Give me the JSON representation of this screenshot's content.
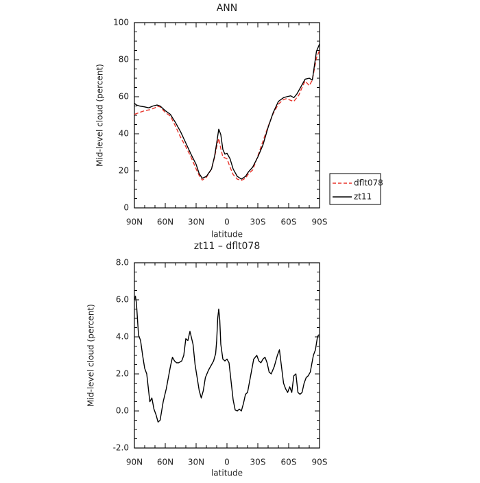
{
  "chart_data": [
    {
      "type": "line",
      "title": "ANN",
      "xlabel": "latitude",
      "ylabel": "Mid-level cloud (percent)",
      "xlim": [
        90,
        -90
      ],
      "ylim": [
        0,
        100
      ],
      "xticks": [
        90,
        60,
        30,
        0,
        -30,
        -60,
        -90
      ],
      "xticklabels": [
        "90N",
        "60N",
        "30N",
        "0",
        "30S",
        "60S",
        "90S"
      ],
      "yticks": [
        0,
        20,
        40,
        60,
        80,
        100
      ],
      "yticklabels": [
        "0",
        "20",
        "40",
        "60",
        "80",
        "100"
      ],
      "legend_position": "right",
      "series": [
        {
          "name": "dflt078",
          "color": "#e8332a",
          "dash": "dashed",
          "x": [
            90,
            85,
            80,
            75,
            70,
            68,
            65,
            60,
            55,
            50,
            45,
            40,
            35,
            30,
            27,
            24,
            20,
            15,
            12,
            10,
            8,
            6,
            4,
            0,
            -3,
            -6,
            -10,
            -14,
            -18,
            -21,
            -25,
            -30,
            -35,
            -40,
            -45,
            -50,
            -55,
            -58,
            -62,
            -65,
            -70,
            -73,
            -76,
            -80,
            -83,
            -87,
            -90
          ],
          "y": [
            50.5,
            51.5,
            52.5,
            53,
            54,
            55,
            54.5,
            51.5,
            49.5,
            44,
            38,
            33,
            27.5,
            21,
            17.5,
            15,
            16.5,
            21,
            27.5,
            33,
            37.5,
            32,
            27.5,
            26.5,
            22,
            18,
            15.5,
            14.8,
            16,
            18.5,
            20.5,
            28,
            36,
            44,
            51,
            56,
            58.5,
            59,
            58,
            57.5,
            61,
            65,
            68.5,
            66,
            69,
            81,
            85
          ]
        },
        {
          "name": "zt11",
          "color": "#000000",
          "dash": "solid",
          "x": [
            90,
            88,
            85,
            80,
            76,
            72,
            68,
            65,
            60,
            55,
            50,
            45,
            40,
            35,
            30,
            27,
            24,
            20,
            15,
            12,
            10,
            8,
            6,
            4,
            2,
            0,
            -3,
            -6,
            -10,
            -14,
            -18,
            -21,
            -25,
            -30,
            -35,
            -40,
            -45,
            -50,
            -55,
            -58,
            -62,
            -65,
            -68,
            -72,
            -76,
            -80,
            -83,
            -87,
            -90
          ],
          "y": [
            56.5,
            55.5,
            55,
            54.5,
            54,
            55,
            55.5,
            55,
            52.5,
            50.5,
            46,
            41,
            35,
            29,
            23.5,
            18.5,
            16,
            17,
            21,
            28,
            35,
            42.5,
            39.5,
            31.5,
            29,
            29.5,
            26.5,
            21,
            17,
            15.5,
            17,
            19.5,
            22,
            27.5,
            34,
            43.5,
            51.5,
            57.5,
            59.5,
            60,
            60.5,
            59.5,
            61.5,
            65.5,
            69.5,
            70,
            69,
            84.5,
            88.5
          ]
        }
      ]
    },
    {
      "type": "line",
      "title": "zt11 – dflt078",
      "xlabel": "latitude",
      "ylabel": "Mid-level cloud (percent)",
      "xlim": [
        90,
        -90
      ],
      "ylim": [
        -2,
        8
      ],
      "xticks": [
        90,
        60,
        30,
        0,
        -30,
        -60,
        -90
      ],
      "xticklabels": [
        "90N",
        "60N",
        "30N",
        "0",
        "30S",
        "60S",
        "90S"
      ],
      "yticks": [
        -2,
        0,
        2,
        4,
        6,
        8
      ],
      "yticklabels": [
        "-2.0",
        "0.0",
        "2.0",
        "4.0",
        "6.0",
        "8.0"
      ],
      "series": [
        {
          "color": "#000000",
          "dash": "solid",
          "x": [
            90,
            89,
            88,
            86,
            84,
            82,
            80,
            78,
            77,
            75,
            73,
            71,
            69,
            67,
            65,
            62,
            59,
            57,
            55,
            53,
            51,
            49,
            47,
            44,
            42,
            40,
            38,
            36,
            33,
            31,
            29,
            27,
            25,
            23,
            21,
            18,
            15,
            13,
            11,
            10,
            9,
            8,
            7,
            6,
            4,
            2,
            0,
            -2,
            -4,
            -6,
            -8,
            -10,
            -12,
            -14,
            -16,
            -18,
            -20,
            -23,
            -26,
            -29,
            -31,
            -33,
            -35,
            -37,
            -39,
            -41,
            -43,
            -46,
            -49,
            -51,
            -53,
            -55,
            -57,
            -59,
            -61,
            -63,
            -65,
            -67,
            -69,
            -71,
            -73,
            -75,
            -77,
            -79,
            -81,
            -84,
            -86,
            -88,
            -89,
            -90
          ],
          "y": [
            6.0,
            6.2,
            5.8,
            4.1,
            3.8,
            3.0,
            2.3,
            2.0,
            1.5,
            0.5,
            0.7,
            0.1,
            -0.2,
            -0.6,
            -0.5,
            0.5,
            1.2,
            1.8,
            2.4,
            2.9,
            2.7,
            2.6,
            2.6,
            2.7,
            3.0,
            3.9,
            3.8,
            4.3,
            3.6,
            2.5,
            1.8,
            1.1,
            0.7,
            1.1,
            1.8,
            2.2,
            2.5,
            2.7,
            3.1,
            3.8,
            5.0,
            5.5,
            4.9,
            3.6,
            2.8,
            2.7,
            2.8,
            2.6,
            1.6,
            0.6,
            0.05,
            0.0,
            0.1,
            0.0,
            0.4,
            0.9,
            1.0,
            1.9,
            2.8,
            3.0,
            2.7,
            2.6,
            2.8,
            2.9,
            2.6,
            2.1,
            2.0,
            2.4,
            3.0,
            3.3,
            2.4,
            1.5,
            1.2,
            1.0,
            1.3,
            1.0,
            1.9,
            2.0,
            1.0,
            0.9,
            1.0,
            1.5,
            1.8,
            1.9,
            2.1,
            3.0,
            3.3,
            4.0,
            4.1,
            4.1
          ]
        }
      ]
    }
  ]
}
